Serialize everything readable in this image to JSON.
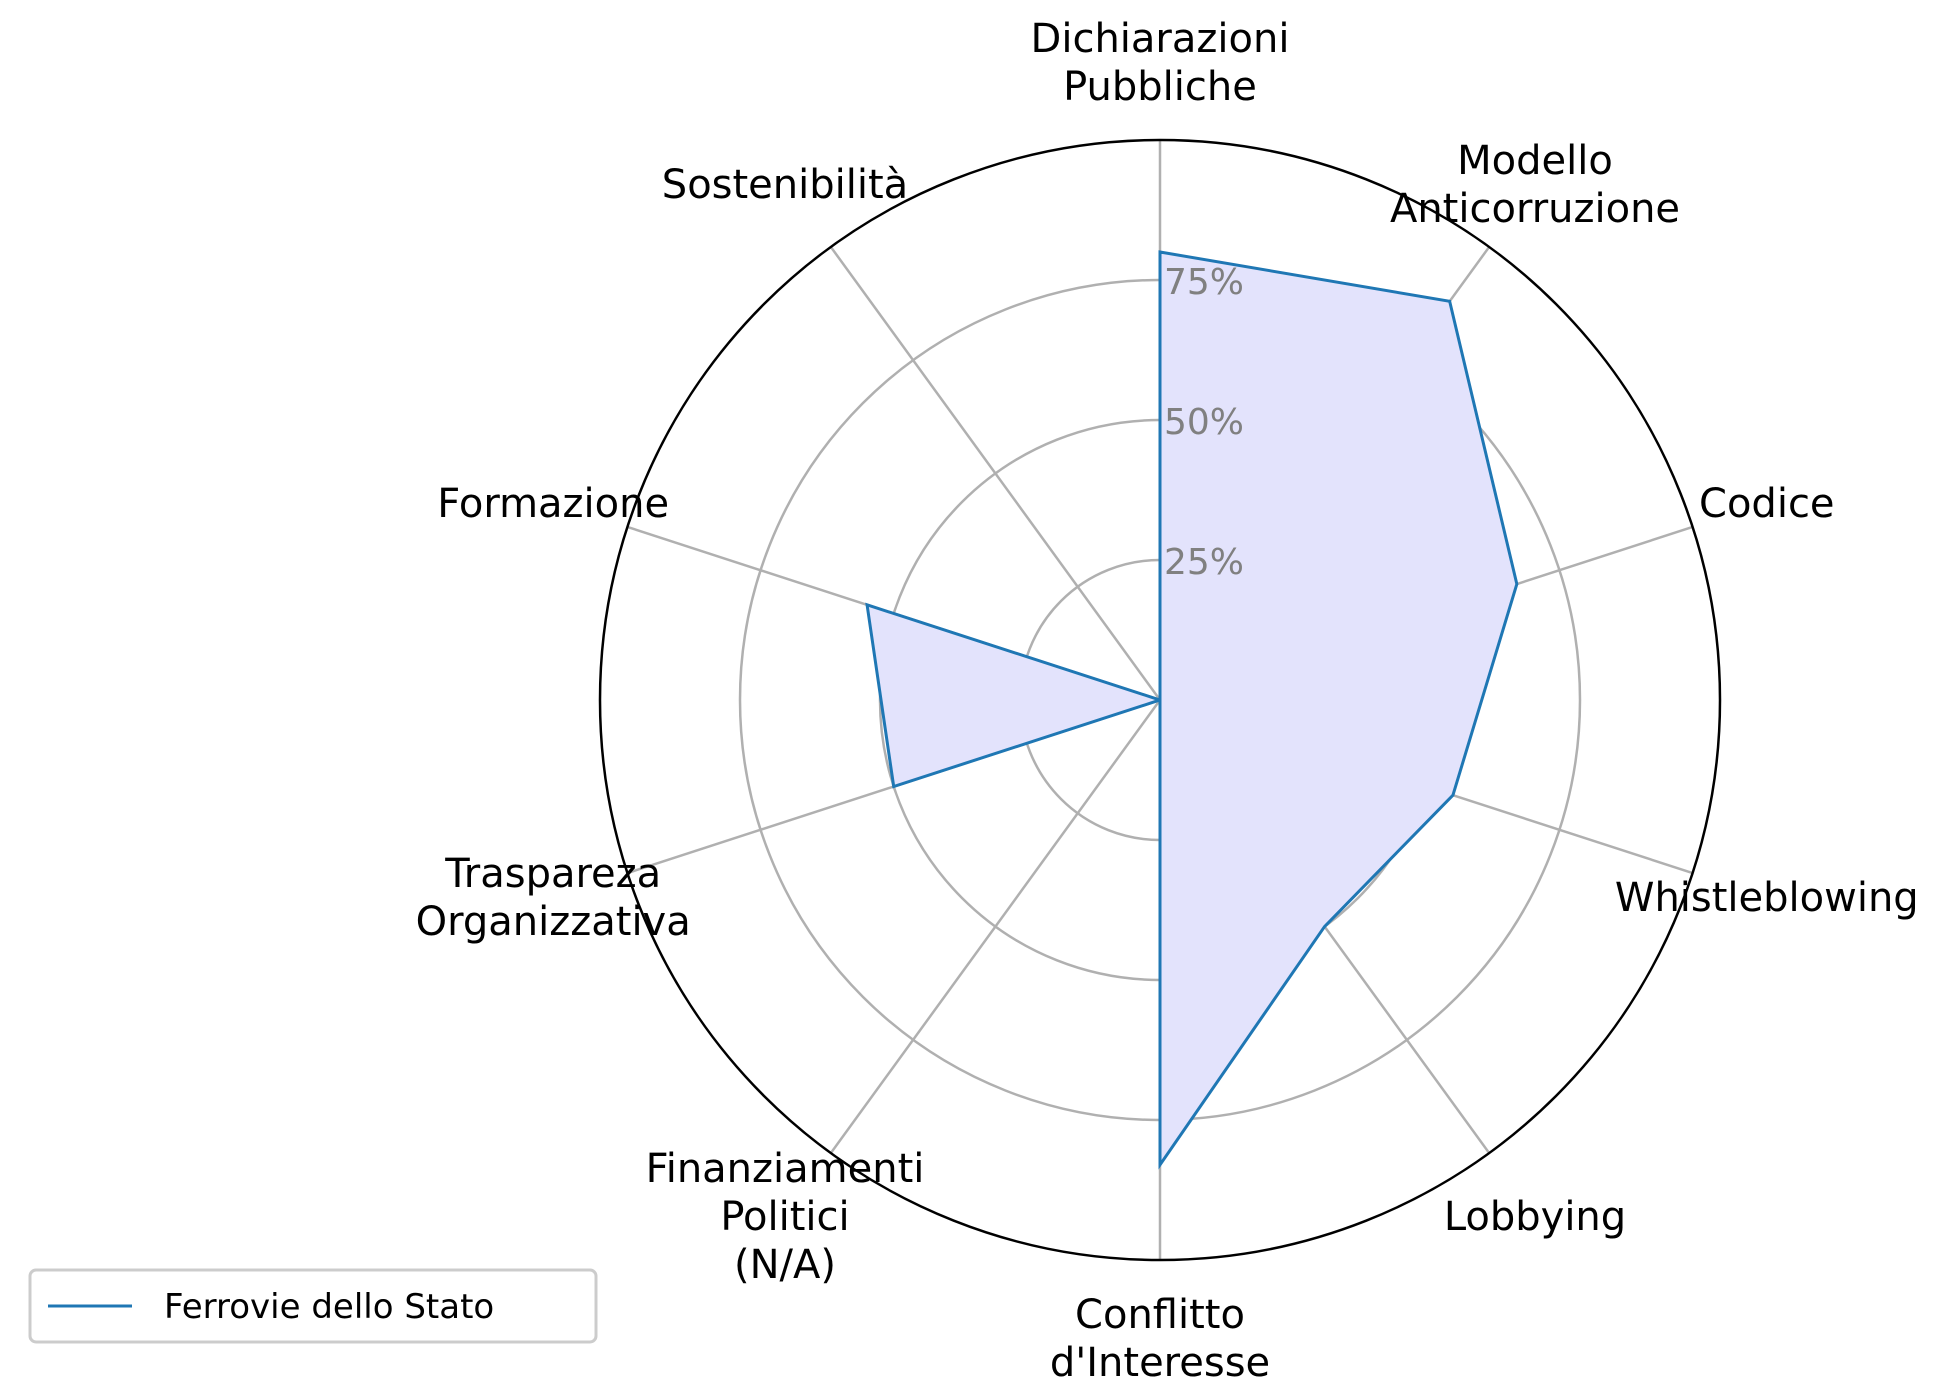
{
  "chart_data": {
    "type": "radar",
    "categories": [
      "Dichiarazioni\nPubbliche",
      "Modello\nAnticorruzione",
      "Codice",
      "Whistleblowing",
      "Lobbying",
      "Conflitto\nd'Interesse",
      "Finanziamenti\nPolitici\n(N/A)",
      "Traspareza\nOrganizzativa",
      "Formazione",
      "Sostenibilità"
    ],
    "series": [
      {
        "name": "Ferrovie dello Stato",
        "values": [
          80,
          88,
          67,
          55,
          50,
          83,
          0,
          50,
          55,
          0
        ]
      }
    ],
    "rlim": [
      0,
      100
    ],
    "rticks": [
      25,
      50,
      75
    ],
    "rtick_labels": [
      "25%",
      "50%",
      "75%"
    ],
    "grid": true,
    "legend_position": "lower-left",
    "colors": {
      "line": "#1f77b4",
      "fill": "#e3e3fc",
      "grid": "#b0b0b0",
      "spine": "#000000",
      "tick_label": "#808080"
    }
  }
}
